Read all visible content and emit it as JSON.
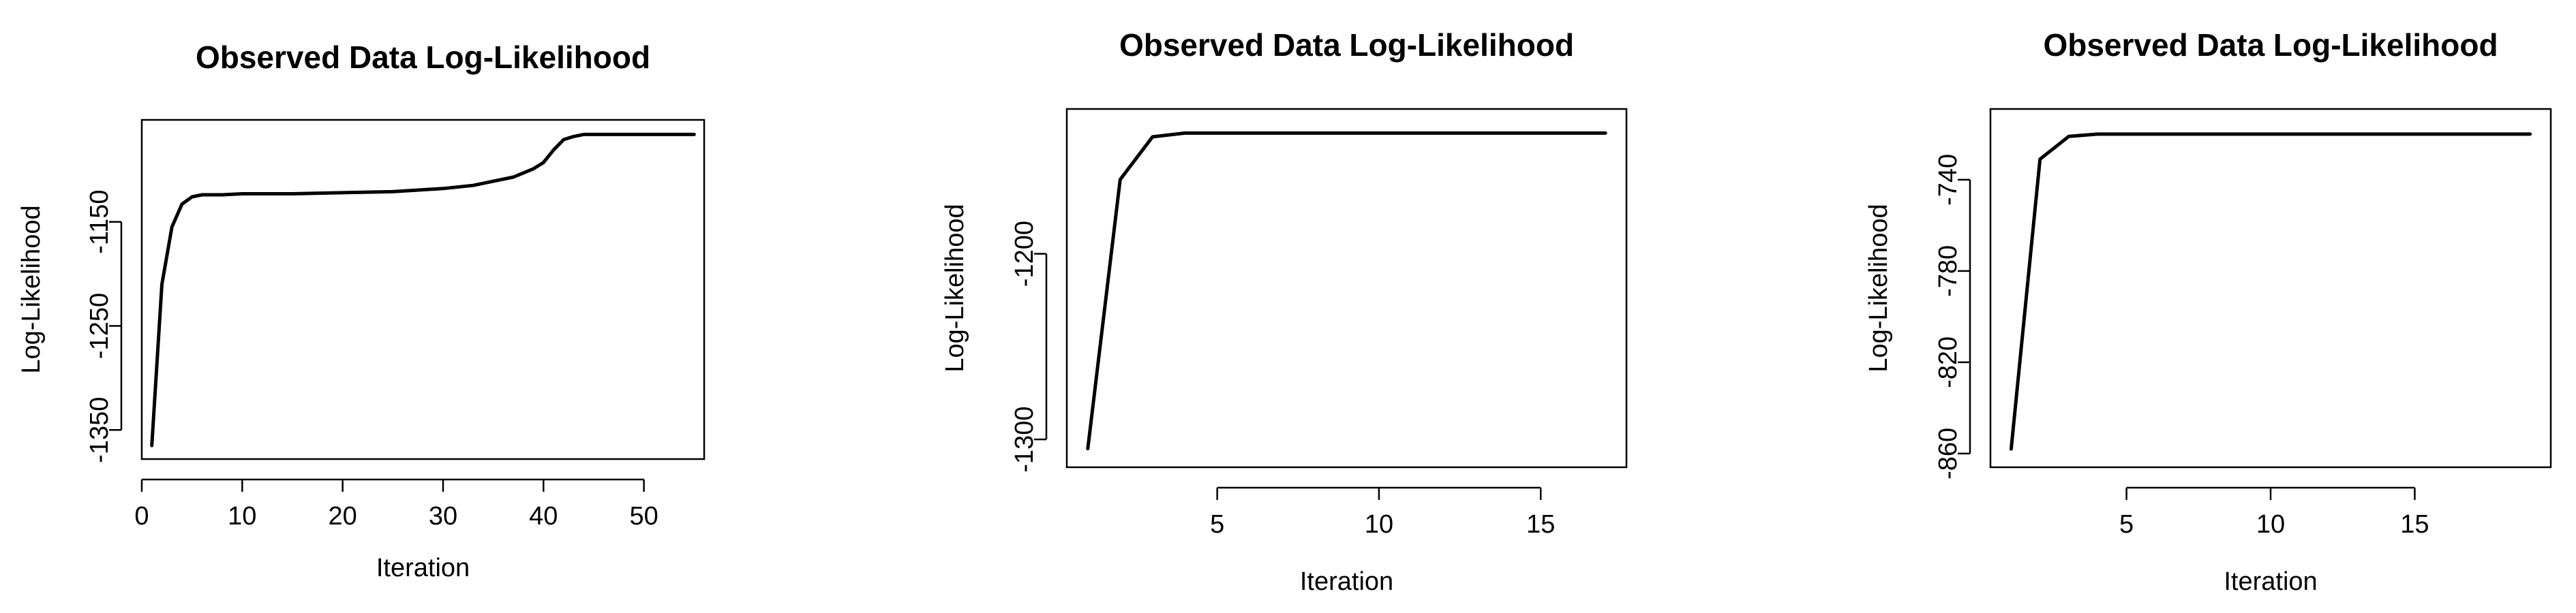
{
  "chart_data": [
    {
      "type": "line",
      "title": "Observed Data Log-Likelihood",
      "xlabel": "Iteration",
      "ylabel": "Log-Likelihood",
      "xlim": [
        0,
        56
      ],
      "ylim": [
        -1378,
        -1052
      ],
      "xticks": [
        0,
        10,
        20,
        30,
        40,
        50
      ],
      "yticks": [
        -1150,
        -1250,
        -1350
      ],
      "grid": false,
      "legend": "none",
      "series": [
        {
          "x": [
            1,
            2,
            3,
            4,
            5,
            6,
            8,
            10,
            15,
            20,
            25,
            30,
            33,
            35,
            37,
            38,
            39,
            40,
            41,
            42,
            43,
            44,
            45,
            50,
            55
          ],
          "y": [
            -1365,
            -1210,
            -1155,
            -1133,
            -1126,
            -1124,
            -1124,
            -1123,
            -1123,
            -1122,
            -1121,
            -1118,
            -1115,
            -1111,
            -1107,
            -1103,
            -1099,
            -1093,
            -1081,
            -1071,
            -1068,
            -1066,
            -1066,
            -1066,
            -1066
          ]
        }
      ]
    },
    {
      "type": "line",
      "title": "Observed Data Log-Likelihood",
      "xlabel": "Iteration",
      "ylabel": "Log-Likelihood",
      "xlim": [
        0.35,
        17.65
      ],
      "ylim": [
        -1315,
        -1122
      ],
      "xticks": [
        5,
        10,
        15
      ],
      "yticks": [
        -1200,
        -1300
      ],
      "grid": false,
      "legend": "none",
      "series": [
        {
          "x": [
            1,
            2,
            3,
            4,
            5,
            6,
            7,
            8,
            9,
            10,
            11,
            12,
            13,
            14,
            15,
            16,
            17
          ],
          "y": [
            -1305,
            -1160,
            -1137,
            -1135,
            -1135,
            -1135,
            -1135,
            -1135,
            -1135,
            -1135,
            -1135,
            -1135,
            -1135,
            -1135,
            -1135,
            -1135,
            -1135
          ]
        }
      ]
    },
    {
      "type": "line",
      "title": "Observed Data Log-Likelihood",
      "xlabel": "Iteration",
      "ylabel": "Log-Likelihood",
      "xlim": [
        0.28,
        19.72
      ],
      "ylim": [
        -866,
        -709
      ],
      "xticks": [
        5,
        10,
        15
      ],
      "yticks": [
        -740,
        -780,
        -820,
        -860
      ],
      "grid": false,
      "legend": "none",
      "series": [
        {
          "x": [
            1,
            2,
            3,
            4,
            5,
            6,
            7,
            8,
            9,
            10,
            11,
            12,
            13,
            14,
            15,
            16,
            17,
            18,
            19
          ],
          "y": [
            -858,
            -731,
            -721,
            -720,
            -720,
            -720,
            -720,
            -720,
            -720,
            -720,
            -720,
            -720,
            -720,
            -720,
            -720,
            -720,
            -720,
            -720,
            -720
          ]
        }
      ]
    }
  ]
}
